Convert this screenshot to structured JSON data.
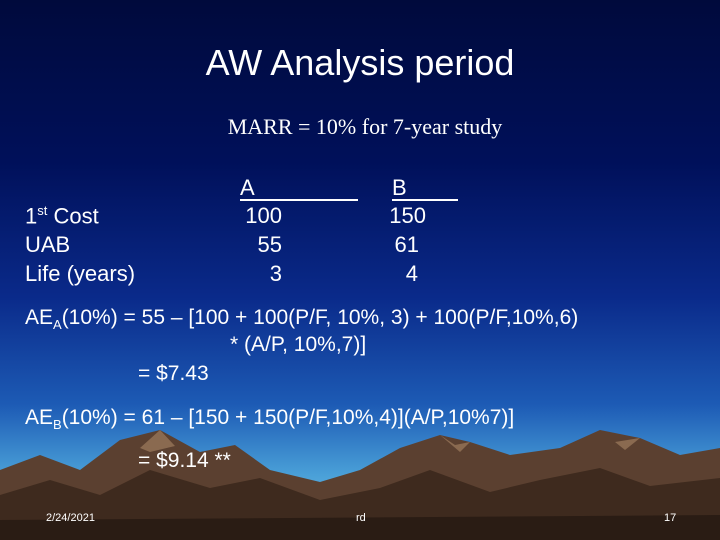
{
  "title": "AW Analysis period",
  "subtitle": "MARR = 10% for 7-year study",
  "table": {
    "header_a": "A",
    "header_b": "B",
    "rows": [
      {
        "label": "1",
        "label_sup": "st",
        "label_rest": " Cost",
        "a": "100",
        "b": "150"
      },
      {
        "label": "UAB",
        "a": "55",
        "b": "61"
      },
      {
        "label": "Life (years)",
        "a": "3",
        "b": "4"
      }
    ]
  },
  "eq_a": {
    "prefix": "AE",
    "sub": "A",
    "line1": "(10%) = 55 – [100 + 100(P/F, 10%, 3) + 100(P/F,10%,6)",
    "line2": "* (A/P, 10%,7)]",
    "result": "= $7.43"
  },
  "eq_b": {
    "prefix": "AE",
    "sub": "B",
    "line1": "(10%) = 61 – [150 + 150(P/F,10%,4)](A/P,10%7)]",
    "result": "= $9.14 **"
  },
  "footer": {
    "date": "2/24/2021",
    "author": "rd",
    "page": "17"
  }
}
